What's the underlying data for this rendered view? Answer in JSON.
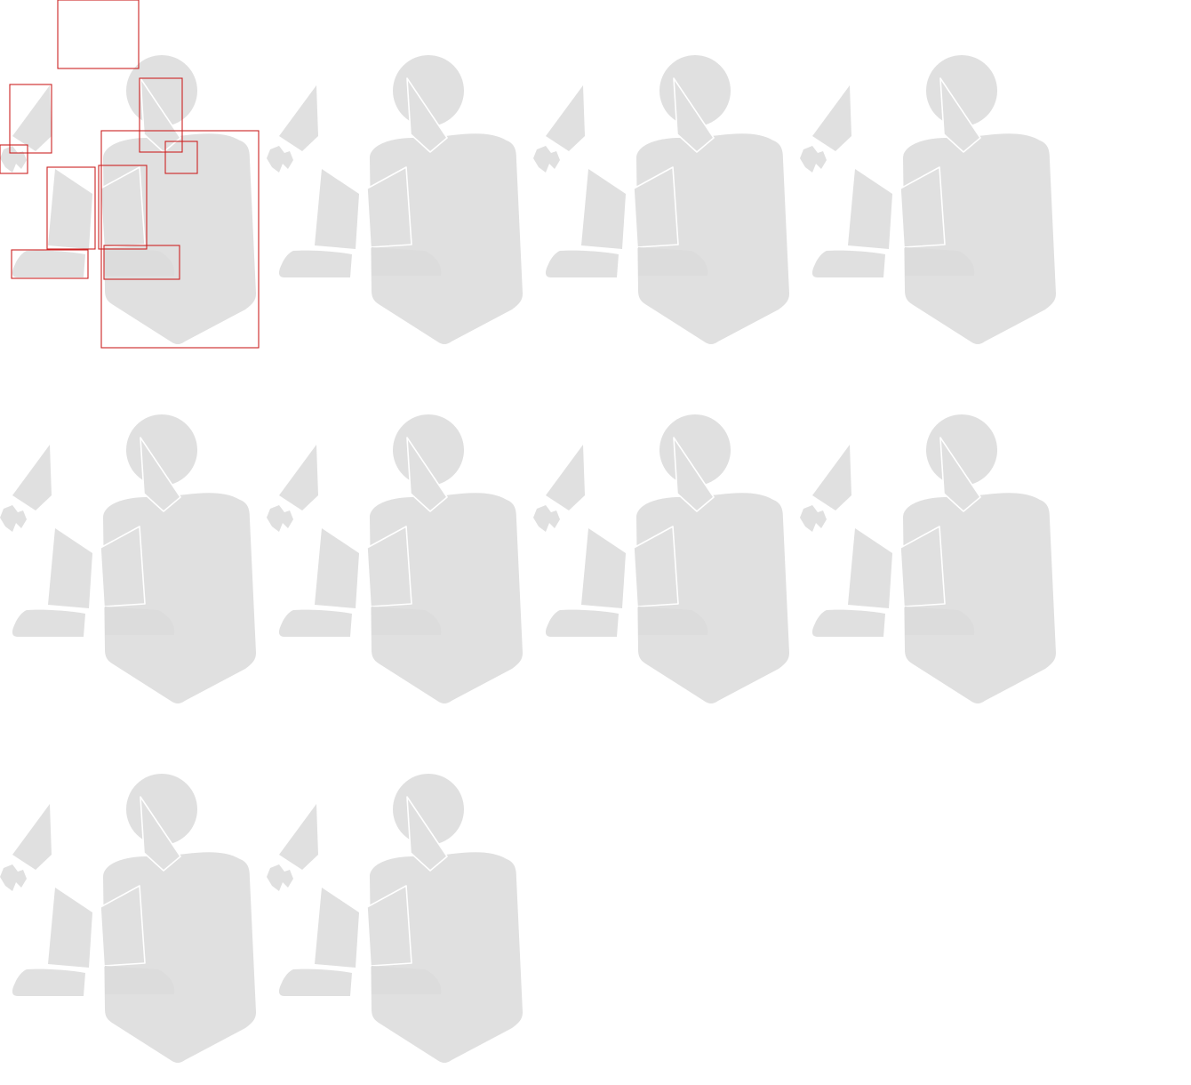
{
  "sprite_sheet": {
    "background": "#ffffff",
    "part_color": "#e0e0e0",
    "part_outline_color": "#ffffff",
    "hitbox_color": "#cc2222",
    "frame_count": 10,
    "columns": 4,
    "frames_with_hitboxes": [
      0
    ],
    "parts": [
      "head",
      "neck-triangle",
      "torso",
      "upper-arm",
      "hand",
      "forearm",
      "foot-left",
      "foot-right",
      "shoulder-joint",
      "thigh"
    ],
    "icon": "sprite-figure"
  }
}
